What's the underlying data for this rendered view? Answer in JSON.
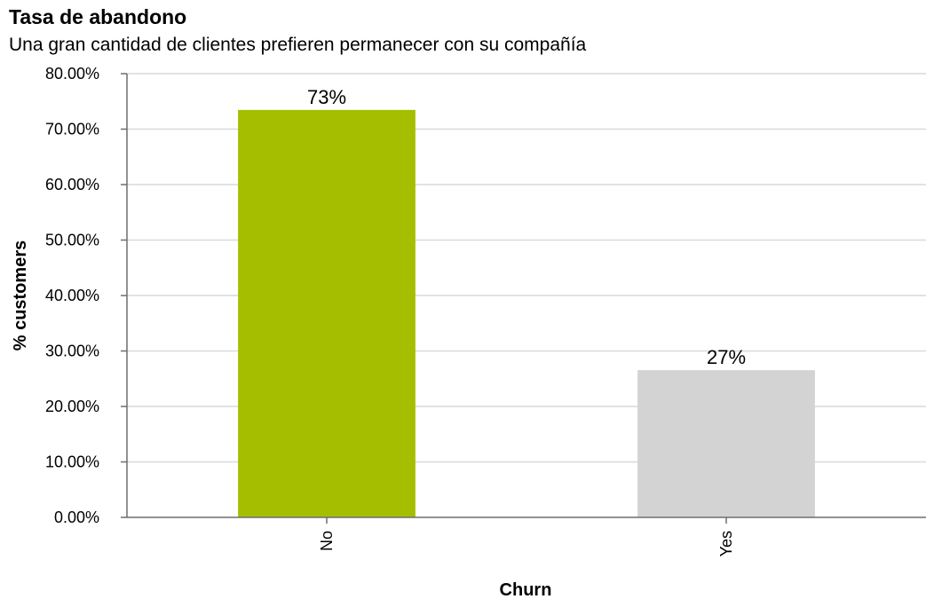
{
  "chart_data": {
    "type": "bar",
    "title": "Tasa de abandono",
    "subtitle": "Una gran cantidad de clientes prefieren permanecer con su compañía",
    "xlabel": "Churn",
    "ylabel": "% customers",
    "categories": [
      "No",
      "Yes"
    ],
    "values": [
      73.46,
      26.54
    ],
    "data_labels": [
      "73%",
      "27%"
    ],
    "ylim": [
      0,
      80
    ],
    "yticks": [
      0,
      10,
      20,
      30,
      40,
      50,
      60,
      70,
      80
    ],
    "ytick_labels": [
      "0.00%",
      "10.00%",
      "20.00%",
      "30.00%",
      "40.00%",
      "50.00%",
      "60.00%",
      "70.00%",
      "80.00%"
    ],
    "grid": true,
    "legend": "none",
    "colors": [
      "#a5bf00",
      "#d3d3d3"
    ]
  }
}
